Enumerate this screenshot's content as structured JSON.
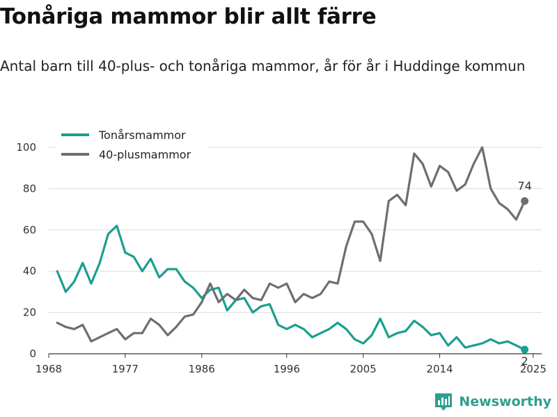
{
  "title": "Tonåriga mammor blir allt färre",
  "subtitle": "Antal barn till 40-plus- och tonåriga mammor, år för år i Huddinge kommun",
  "brand": {
    "name": "Newsworthy",
    "color": "#2f9e8f",
    "icon": "newsworthy-logo-icon"
  },
  "chart_data": {
    "type": "line",
    "title": "",
    "xlabel": "",
    "ylabel": "",
    "xlim": [
      1968,
      2026
    ],
    "ylim": [
      0,
      100
    ],
    "y_ticks": [
      0,
      20,
      40,
      60,
      80,
      100
    ],
    "x_ticks": [
      1968,
      1977,
      1986,
      1996,
      2005,
      2014,
      2025
    ],
    "grid": "horizontal",
    "legend": "top-left",
    "x": [
      1969,
      1970,
      1971,
      1972,
      1973,
      1974,
      1975,
      1976,
      1977,
      1978,
      1979,
      1980,
      1981,
      1982,
      1983,
      1984,
      1985,
      1986,
      1987,
      1988,
      1989,
      1990,
      1991,
      1992,
      1993,
      1994,
      1995,
      1996,
      1997,
      1998,
      1999,
      2000,
      2001,
      2002,
      2003,
      2004,
      2005,
      2006,
      2007,
      2008,
      2009,
      2010,
      2011,
      2012,
      2013,
      2014,
      2015,
      2016,
      2017,
      2018,
      2019,
      2020,
      2021,
      2022,
      2023,
      2024
    ],
    "series": [
      {
        "name": "Tonårsmammor",
        "color": "#1a9e8f",
        "values": [
          40,
          30,
          35,
          44,
          34,
          44,
          58,
          62,
          49,
          47,
          40,
          46,
          37,
          41,
          41,
          35,
          32,
          27,
          31,
          32,
          21,
          26,
          27,
          20,
          23,
          24,
          14,
          12,
          14,
          12,
          8,
          10,
          12,
          15,
          12,
          7,
          5,
          9,
          17,
          8,
          10,
          11,
          16,
          13,
          9,
          10,
          4,
          8,
          3,
          4,
          5,
          7,
          5,
          6,
          4,
          2
        ],
        "end_label": "2"
      },
      {
        "name": "40-plusmammor",
        "color": "#6d6d72",
        "values": [
          15,
          13,
          12,
          14,
          6,
          8,
          10,
          12,
          7,
          10,
          10,
          17,
          14,
          9,
          13,
          18,
          19,
          25,
          34,
          25,
          29,
          26,
          31,
          27,
          26,
          34,
          32,
          34,
          25,
          29,
          27,
          29,
          35,
          34,
          52,
          64,
          64,
          58,
          45,
          74,
          77,
          72,
          97,
          92,
          81,
          91,
          88,
          79,
          82,
          92,
          100,
          80,
          73,
          70,
          65,
          74
        ],
        "end_label": "74"
      }
    ]
  }
}
